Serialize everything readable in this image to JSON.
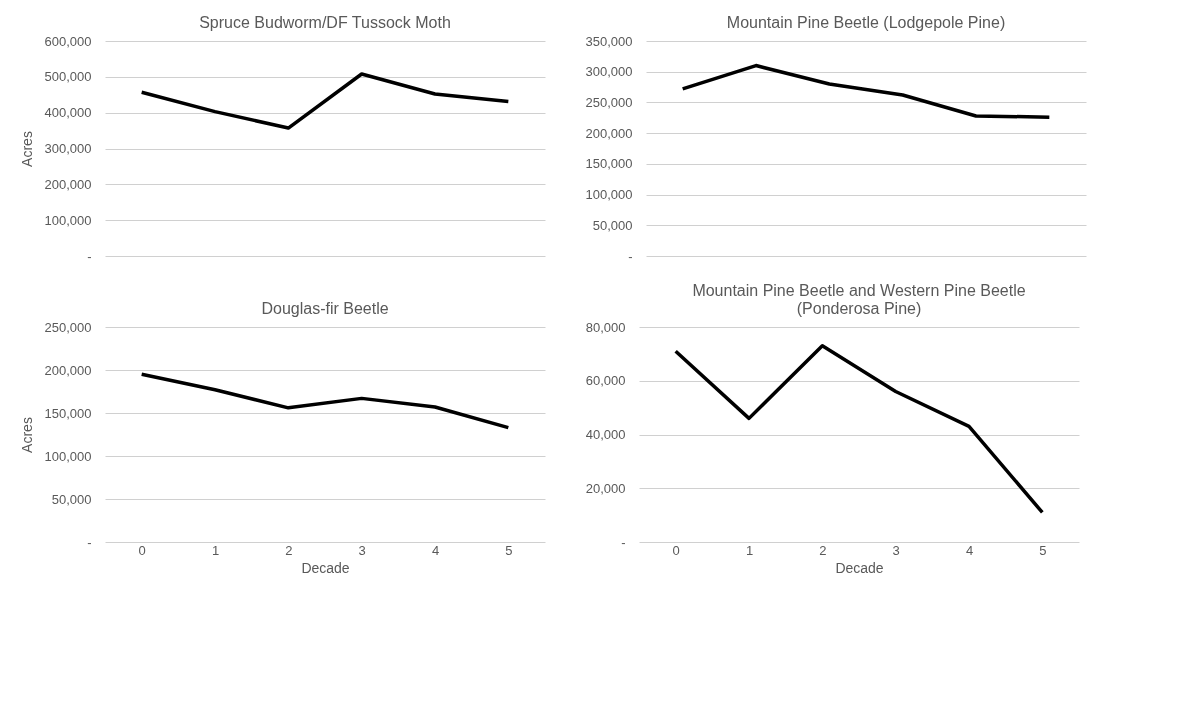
{
  "chart_data": [
    {
      "type": "line",
      "title": "Spruce Budworm/DF Tussock Moth",
      "ylabel": "Acres",
      "categories": [
        "0",
        "1",
        "2",
        "3",
        "4",
        "5"
      ],
      "tick_labels": "y",
      "grid": "y",
      "marker": "none",
      "line_style": "solid",
      "series": [
        {
          "color": "#000000",
          "values": [
            457000,
            403000,
            357000,
            508000,
            452000,
            431000
          ]
        }
      ],
      "ylim": [
        0,
        600000
      ],
      "yticks": [
        {
          "value": 0,
          "label": "-"
        },
        {
          "value": 100000,
          "label": "100,000"
        },
        {
          "value": 200000,
          "label": "200,000"
        },
        {
          "value": 300000,
          "label": "300,000"
        },
        {
          "value": 400000,
          "label": "400,000"
        },
        {
          "value": 500000,
          "label": "500,000"
        },
        {
          "value": 600000,
          "label": "600,000"
        }
      ]
    },
    {
      "type": "line",
      "title": "Mountain Pine Beetle (Lodgepole Pine)",
      "categories": [
        "0",
        "1",
        "2",
        "3",
        "4",
        "5"
      ],
      "tick_labels": "y",
      "grid": "y",
      "marker": "none",
      "line_style": "solid",
      "series": [
        {
          "color": "#000000",
          "values": [
            272000,
            310000,
            280000,
            262000,
            228000,
            226000
          ]
        }
      ],
      "ylim": [
        0,
        350000
      ],
      "yticks": [
        {
          "value": 0,
          "label": "-"
        },
        {
          "value": 50000,
          "label": "50,000"
        },
        {
          "value": 100000,
          "label": "100,000"
        },
        {
          "value": 150000,
          "label": "150,000"
        },
        {
          "value": 200000,
          "label": "200,000"
        },
        {
          "value": 250000,
          "label": "250,000"
        },
        {
          "value": 300000,
          "label": "300,000"
        },
        {
          "value": 350000,
          "label": "350,000"
        }
      ]
    },
    {
      "type": "line",
      "title": "Douglas-fir Beetle",
      "ylabel": "Acres",
      "xlabel": "Decade",
      "categories": [
        "0",
        "1",
        "2",
        "3",
        "4",
        "5"
      ],
      "grid": "y",
      "marker": "none",
      "line_style": "solid",
      "series": [
        {
          "color": "#000000",
          "values": [
            195000,
            177000,
            156000,
            167000,
            157000,
            133000
          ]
        }
      ],
      "ylim": [
        0,
        250000
      ],
      "yticks": [
        {
          "value": 0,
          "label": "-"
        },
        {
          "value": 50000,
          "label": "50,000"
        },
        {
          "value": 100000,
          "label": "100,000"
        },
        {
          "value": 150000,
          "label": "150,000"
        },
        {
          "value": 200000,
          "label": "200,000"
        },
        {
          "value": 250000,
          "label": "250,000"
        }
      ]
    },
    {
      "type": "line",
      "title": "Mountain Pine Beetle and Western Pine Beetle (Ponderosa Pine)",
      "xlabel": "Decade",
      "categories": [
        "0",
        "1",
        "2",
        "3",
        "4",
        "5"
      ],
      "grid": "y",
      "marker": "none",
      "line_style": "solid",
      "series": [
        {
          "color": "#000000",
          "values": [
            71000,
            46000,
            73000,
            56000,
            43000,
            11000
          ]
        }
      ],
      "ylim": [
        0,
        80000
      ],
      "yticks": [
        {
          "value": 0,
          "label": "-"
        },
        {
          "value": 20000,
          "label": "20,000"
        },
        {
          "value": 40000,
          "label": "40,000"
        },
        {
          "value": 60000,
          "label": "60,000"
        },
        {
          "value": 80000,
          "label": "80,000"
        }
      ]
    }
  ]
}
